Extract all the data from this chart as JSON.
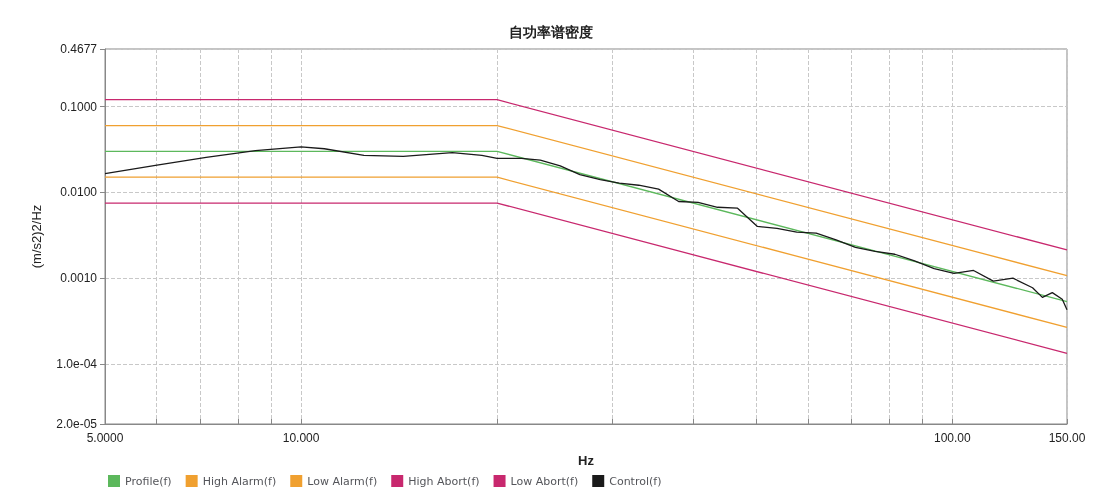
{
  "chart_data": {
    "type": "line",
    "title": "自功率谱密度",
    "xlabel": "Hz",
    "ylabel": "(m/s2)2/Hz",
    "log": "xy",
    "grid": true,
    "legend": "bottom",
    "marker": "none",
    "line_style": "solid",
    "xlim": [
      5,
      150
    ],
    "ylim": [
      2e-05,
      0.4677
    ],
    "xticks": [
      {
        "value": 5,
        "label": "5.0000"
      },
      {
        "value": 6,
        "label": null
      },
      {
        "value": 7,
        "label": null
      },
      {
        "value": 8,
        "label": null
      },
      {
        "value": 9,
        "label": null
      },
      {
        "value": 10,
        "label": "10.000"
      },
      {
        "value": 20,
        "label": null
      },
      {
        "value": 30,
        "label": null
      },
      {
        "value": 40,
        "label": null
      },
      {
        "value": 50,
        "label": null
      },
      {
        "value": 60,
        "label": null
      },
      {
        "value": 70,
        "label": null
      },
      {
        "value": 80,
        "label": null
      },
      {
        "value": 90,
        "label": null
      },
      {
        "value": 100,
        "label": "100.00"
      },
      {
        "value": 150,
        "label": "150.00"
      }
    ],
    "yticks": [
      {
        "value": 2e-05,
        "label": "2.0e-05"
      },
      {
        "value": 0.0001,
        "label": "1.0e-04"
      },
      {
        "value": 0.001,
        "label": "0.0010"
      },
      {
        "value": 0.01,
        "label": "0.0100"
      },
      {
        "value": 0.1,
        "label": "0.1000"
      },
      {
        "value": 0.4677,
        "label": "0.4677"
      }
    ],
    "series": [
      {
        "name": "Profile(f)",
        "color": "#5cb85c",
        "x": [
          5,
          20,
          150
        ],
        "values": [
          0.03,
          0.03,
          0.000533
        ]
      },
      {
        "name": "High Alarm(f)",
        "color": "#f0a030",
        "x": [
          5,
          20,
          150
        ],
        "values": [
          0.06,
          0.06,
          0.00107
        ]
      },
      {
        "name": "Low Alarm(f)",
        "color": "#f0a030",
        "x": [
          5,
          20,
          150
        ],
        "values": [
          0.015,
          0.015,
          0.000267
        ]
      },
      {
        "name": "High Abort(f)",
        "color": "#c8286e",
        "x": [
          5,
          20,
          150
        ],
        "values": [
          0.12,
          0.12,
          0.00213
        ]
      },
      {
        "name": "Low Abort(f)",
        "color": "#c8286e",
        "x": [
          5,
          20,
          150
        ],
        "values": [
          0.0075,
          0.0075,
          0.000133
        ]
      },
      {
        "name": "Control(f)",
        "color": "#1a1a1a",
        "x": [
          5,
          6.01,
          7.15,
          8.51,
          10,
          10.86,
          12.49,
          14.35,
          17.07,
          18.95,
          20,
          21.8,
          23.3,
          25,
          26.8,
          28.8,
          30.8,
          33,
          35.4,
          38,
          40.7,
          43.6,
          46.8,
          50.2,
          53.8,
          57.7,
          61.8,
          66.3,
          71,
          76.1,
          81.6,
          87.5,
          93.8,
          100.6,
          107.8,
          115.6,
          123.9,
          132.8,
          137.5,
          142.4,
          147.5,
          150
        ],
        "values": [
          0.0165,
          0.0208,
          0.0255,
          0.0306,
          0.0339,
          0.0322,
          0.0269,
          0.0262,
          0.029,
          0.0269,
          0.0249,
          0.0249,
          0.0237,
          0.0203,
          0.0161,
          0.0141,
          0.0128,
          0.0121,
          0.0109,
          0.00782,
          0.00762,
          0.0067,
          0.00653,
          0.00401,
          0.00381,
          0.00344,
          0.00335,
          0.0028,
          0.00228,
          0.00205,
          0.0019,
          0.00159,
          0.00129,
          0.00114,
          0.00123,
          0.000924,
          0.001,
          0.000773,
          0.000597,
          0.000679,
          0.000568,
          0.000428
        ]
      }
    ]
  }
}
